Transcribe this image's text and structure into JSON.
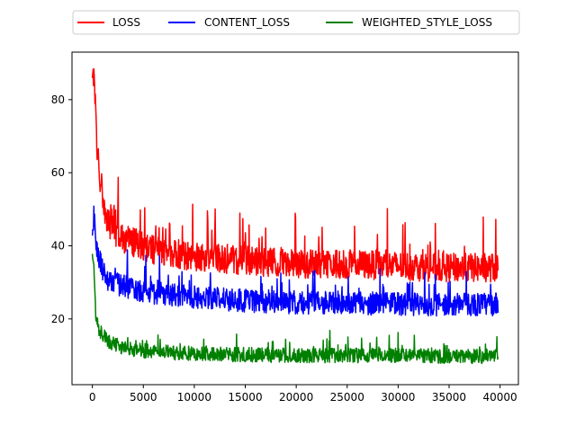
{
  "chart_data": {
    "type": "line",
    "title": "",
    "xlabel": "",
    "ylabel": "",
    "xlim": [
      -2000,
      41800
    ],
    "ylim": [
      2,
      93
    ],
    "xticks": [
      0,
      5000,
      10000,
      15000,
      20000,
      25000,
      30000,
      35000,
      40000
    ],
    "xtick_labels": [
      "0",
      "5000",
      "10000",
      "15000",
      "20000",
      "25000",
      "30000",
      "35000",
      "40000"
    ],
    "yticks": [
      20,
      40,
      60,
      80
    ],
    "ytick_labels": [
      "20",
      "40",
      "60",
      "80"
    ],
    "grid": false,
    "legend_position": "top-center-outside",
    "x_range": [
      0,
      39800
    ],
    "series": [
      {
        "name": "LOSS",
        "color": "#ff0000",
        "noise_amplitude": 4,
        "spike_max": 12,
        "anchors": [
          [
            0,
            83
          ],
          [
            150,
            89
          ],
          [
            400,
            70
          ],
          [
            800,
            55
          ],
          [
            1500,
            46
          ],
          [
            3000,
            42
          ],
          [
            6000,
            39
          ],
          [
            10000,
            37
          ],
          [
            15000,
            36
          ],
          [
            20000,
            35
          ],
          [
            25000,
            35
          ],
          [
            30000,
            34.5
          ],
          [
            35000,
            34
          ],
          [
            39800,
            34
          ]
        ]
      },
      {
        "name": "CONTENT_LOSS",
        "color": "#0000ff",
        "noise_amplitude": 3.2,
        "spike_max": 8,
        "anchors": [
          [
            0,
            45
          ],
          [
            150,
            48
          ],
          [
            400,
            40
          ],
          [
            800,
            35
          ],
          [
            1500,
            31
          ],
          [
            3000,
            29
          ],
          [
            6000,
            27
          ],
          [
            10000,
            26
          ],
          [
            15000,
            25
          ],
          [
            20000,
            24.5
          ],
          [
            25000,
            24.5
          ],
          [
            30000,
            24
          ],
          [
            35000,
            24
          ],
          [
            39800,
            24
          ]
        ]
      },
      {
        "name": "WEIGHTED_STYLE_LOSS",
        "color": "#008000",
        "noise_amplitude": 2,
        "spike_max": 5,
        "anchors": [
          [
            0,
            38
          ],
          [
            150,
            36
          ],
          [
            300,
            22
          ],
          [
            600,
            17
          ],
          [
            1500,
            14
          ],
          [
            3000,
            12
          ],
          [
            6000,
            11
          ],
          [
            10000,
            10.5
          ],
          [
            15000,
            10.2
          ],
          [
            20000,
            10
          ],
          [
            25000,
            10
          ],
          [
            30000,
            10
          ],
          [
            35000,
            9.8
          ],
          [
            39800,
            9.8
          ]
        ]
      }
    ]
  }
}
